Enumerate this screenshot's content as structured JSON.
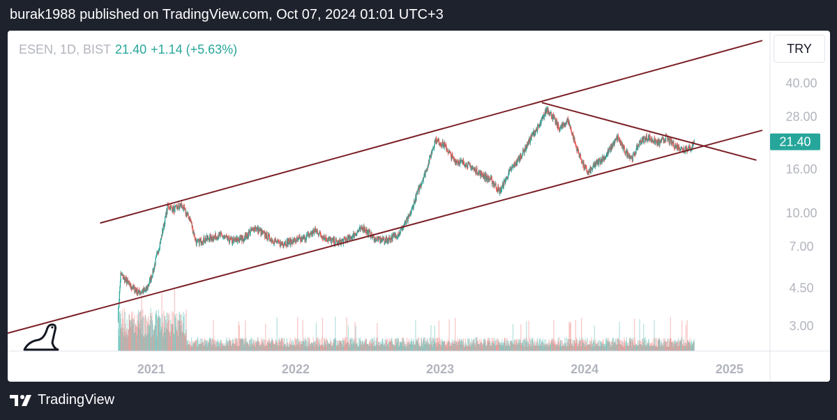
{
  "header": {
    "attribution": "burak1988 published on TradingView.com, Oct 07, 2024 01:01 UTC+3"
  },
  "symbol_bar": {
    "symbol": "ESEN, 1D, BIST",
    "price": "21.40",
    "change": "+1.14 (+5.63%)"
  },
  "currency_button": "TRY",
  "footer": {
    "brand": "TradingView"
  },
  "colors": {
    "up": "#26a69a",
    "down": "#ef5350",
    "trendline": "#7b1f25",
    "price_label_bg": "#26a69a"
  },
  "icons": {
    "watermark": "dinosaur-icon",
    "brand": "tradingview-logo-icon"
  },
  "chart_data": {
    "type": "candlestick",
    "y_scale": "log",
    "ylim": [
      2.3,
      70
    ],
    "xlim": [
      "2020-01-01",
      "2025-05-01"
    ],
    "y_ticks": [
      "40.00",
      "28.00",
      "16.00",
      "10.00",
      "7.00",
      "4.50",
      "3.00"
    ],
    "x_ticks": [
      "2021",
      "2022",
      "2023",
      "2024",
      "2025"
    ],
    "last_price_label": "21.40",
    "price_path": [
      [
        "2020-10-09",
        3.3
      ],
      [
        "2020-10-16",
        5.2
      ],
      [
        "2020-11-10",
        4.6
      ],
      [
        "2020-12-01",
        4.3
      ],
      [
        "2020-12-20",
        4.4
      ],
      [
        "2021-01-05",
        5.3
      ],
      [
        "2021-01-25",
        7.5
      ],
      [
        "2021-02-12",
        10.8
      ],
      [
        "2021-02-28",
        10.4
      ],
      [
        "2021-03-18",
        10.9
      ],
      [
        "2021-04-10",
        9.3
      ],
      [
        "2021-04-25",
        7.3
      ],
      [
        "2021-05-20",
        7.6
      ],
      [
        "2021-06-25",
        7.9
      ],
      [
        "2021-07-25",
        7.4
      ],
      [
        "2021-08-25",
        7.7
      ],
      [
        "2021-09-20",
        8.6
      ],
      [
        "2021-10-20",
        7.8
      ],
      [
        "2021-11-20",
        7.2
      ],
      [
        "2021-12-20",
        7.4
      ],
      [
        "2022-01-20",
        7.6
      ],
      [
        "2022-02-20",
        8.3
      ],
      [
        "2022-03-20",
        7.6
      ],
      [
        "2022-04-20",
        7.3
      ],
      [
        "2022-05-20",
        7.7
      ],
      [
        "2022-06-20",
        8.6
      ],
      [
        "2022-07-20",
        7.6
      ],
      [
        "2022-08-20",
        7.5
      ],
      [
        "2022-09-20",
        8.1
      ],
      [
        "2022-10-15",
        9.6
      ],
      [
        "2022-11-05",
        12.5
      ],
      [
        "2022-11-25",
        15.5
      ],
      [
        "2022-12-20",
        21.8
      ],
      [
        "2023-01-10",
        20.8
      ],
      [
        "2023-02-05",
        17.6
      ],
      [
        "2023-03-05",
        17.0
      ],
      [
        "2023-04-10",
        15.4
      ],
      [
        "2023-05-10",
        14.2
      ],
      [
        "2023-06-01",
        12.6
      ],
      [
        "2023-06-25",
        15.5
      ],
      [
        "2023-07-25",
        18.5
      ],
      [
        "2023-08-25",
        23.5
      ],
      [
        "2023-09-10",
        25.5
      ],
      [
        "2023-09-28",
        30.5
      ],
      [
        "2023-10-12",
        28.0
      ],
      [
        "2023-10-30",
        24.5
      ],
      [
        "2023-11-20",
        27.0
      ],
      [
        "2023-12-10",
        20.5
      ],
      [
        "2023-12-30",
        16.5
      ],
      [
        "2024-01-10",
        15.3
      ],
      [
        "2024-01-30",
        17.0
      ],
      [
        "2024-02-25",
        18.5
      ],
      [
        "2024-03-10",
        20.5
      ],
      [
        "2024-03-25",
        22.5
      ],
      [
        "2024-04-10",
        19.5
      ],
      [
        "2024-05-01",
        18.0
      ],
      [
        "2024-05-20",
        21.5
      ],
      [
        "2024-06-10",
        22.5
      ],
      [
        "2024-07-05",
        21.0
      ],
      [
        "2024-07-25",
        22.3
      ],
      [
        "2024-08-15",
        20.6
      ],
      [
        "2024-09-05",
        19.8
      ],
      [
        "2024-09-25",
        20.0
      ],
      [
        "2024-10-04",
        21.4
      ]
    ],
    "trendlines": [
      {
        "name": "channel-upper",
        "from": [
          "2020-08-25",
          9.0
        ],
        "to": [
          "2025-03-25",
          63.0
        ]
      },
      {
        "name": "channel-lower",
        "from": [
          "2019-12-25",
          2.75
        ],
        "to": [
          "2025-03-25",
          24.2
        ]
      },
      {
        "name": "descending-resistance",
        "from": [
          "2023-09-15",
          32.5
        ],
        "to": [
          "2025-03-10",
          17.6
        ]
      }
    ]
  }
}
